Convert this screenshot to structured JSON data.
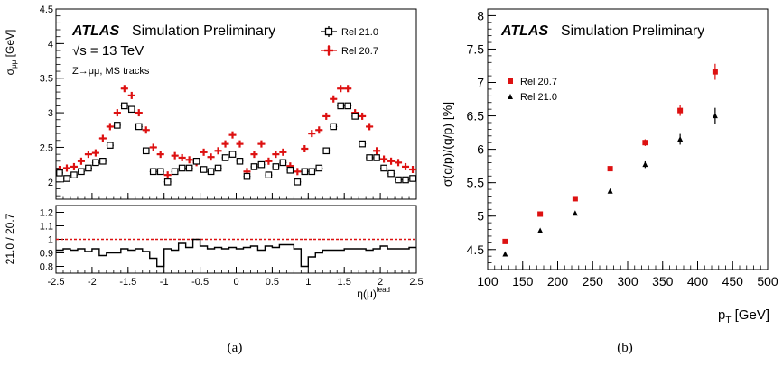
{
  "captions": {
    "left": "(a)",
    "right": "(b)"
  },
  "chart_data": [
    {
      "type": "scatter",
      "panel": "a",
      "atlas_label": "ATLAS",
      "title_rest": "Simulation Preliminary",
      "energy_label": "√s = 13 TeV",
      "process_label": "Z→μμ, MS tracks",
      "ylabel": "σ_μμ [GeV]",
      "ylim": [
        1.75,
        4.5
      ],
      "yticks": [
        2,
        2.5,
        3,
        3.5,
        4,
        4.5
      ],
      "ratio_ylabel": "21.0 / 20.7",
      "ratio_ylim": [
        0.75,
        1.25
      ],
      "ratio_yticks": [
        0.8,
        0.9,
        1,
        1.1,
        1.2
      ],
      "ratio_reference": 1.0,
      "xlabel": "η(μ)^lead",
      "xlim": [
        -2.5,
        2.5
      ],
      "xticks": [
        -2.5,
        -2,
        -1.5,
        -1,
        -0.5,
        0,
        0.5,
        1,
        1.5,
        2,
        2.5
      ],
      "x": [
        -2.45,
        -2.35,
        -2.25,
        -2.15,
        -2.05,
        -1.95,
        -1.85,
        -1.75,
        -1.65,
        -1.55,
        -1.45,
        -1.35,
        -1.25,
        -1.15,
        -1.05,
        -0.95,
        -0.85,
        -0.75,
        -0.65,
        -0.55,
        -0.45,
        -0.35,
        -0.25,
        -0.15,
        -0.05,
        0.05,
        0.15,
        0.25,
        0.35,
        0.45,
        0.55,
        0.65,
        0.75,
        0.85,
        0.95,
        1.05,
        1.15,
        1.25,
        1.35,
        1.45,
        1.55,
        1.65,
        1.75,
        1.85,
        1.95,
        2.05,
        2.15,
        2.25,
        2.35,
        2.45
      ],
      "series": [
        {
          "name": "Rel 21.0",
          "color": "#000000",
          "marker": "open-square",
          "values": [
            2.13,
            2.05,
            2.1,
            2.15,
            2.2,
            2.28,
            2.3,
            2.53,
            2.82,
            3.1,
            3.05,
            2.8,
            2.45,
            2.15,
            2.15,
            2.0,
            2.15,
            2.2,
            2.2,
            2.3,
            2.18,
            2.15,
            2.2,
            2.35,
            2.4,
            2.3,
            2.08,
            2.22,
            2.25,
            2.1,
            2.22,
            2.28,
            2.17,
            2.0,
            2.15,
            2.15,
            2.2,
            2.45,
            2.8,
            3.1,
            3.1,
            2.95,
            2.55,
            2.35,
            2.35,
            2.2,
            2.12,
            2.03,
            2.03,
            2.05
          ]
        },
        {
          "name": "Rel 20.7",
          "color": "#dd1111",
          "marker": "plus",
          "values": [
            2.18,
            2.2,
            2.22,
            2.3,
            2.4,
            2.42,
            2.63,
            2.8,
            3.0,
            3.35,
            3.25,
            3.0,
            2.75,
            2.5,
            2.4,
            2.1,
            2.38,
            2.35,
            2.32,
            2.28,
            2.43,
            2.36,
            2.45,
            2.55,
            2.68,
            2.55,
            2.15,
            2.4,
            2.55,
            2.3,
            2.4,
            2.43,
            2.23,
            2.15,
            2.48,
            2.7,
            2.75,
            2.95,
            3.2,
            3.35,
            3.35,
            3.0,
            2.95,
            2.8,
            2.45,
            2.33,
            2.3,
            2.28,
            2.22,
            2.18
          ]
        }
      ],
      "ratio": [
        0.92,
        0.93,
        0.92,
        0.93,
        0.91,
        0.93,
        0.88,
        0.9,
        0.9,
        0.93,
        0.92,
        0.93,
        0.91,
        0.86,
        0.8,
        0.93,
        0.92,
        0.97,
        0.94,
        1.0,
        0.95,
        0.93,
        0.94,
        0.93,
        0.94,
        0.93,
        0.94,
        0.95,
        0.92,
        0.95,
        0.94,
        0.96,
        0.96,
        0.93,
        0.8,
        0.87,
        0.9,
        0.92,
        0.92,
        0.92,
        0.93,
        0.93,
        0.93,
        0.92,
        0.93,
        0.95,
        0.93,
        0.93,
        0.93,
        0.94
      ]
    },
    {
      "type": "scatter",
      "panel": "b",
      "atlas_label": "ATLAS",
      "title_rest": "Simulation Preliminary",
      "xlabel": "p_T [GeV]",
      "ylabel": "σ(q/p)/(q/p) [%]",
      "xlim": [
        100,
        500
      ],
      "ylim": [
        4.2,
        8.1
      ],
      "xticks": [
        100,
        150,
        200,
        250,
        300,
        350,
        400,
        450,
        500
      ],
      "yticks": [
        4.5,
        5,
        5.5,
        6,
        6.5,
        7,
        7.5,
        8
      ],
      "x": [
        125,
        175,
        225,
        275,
        325,
        375,
        425
      ],
      "series": [
        {
          "name": "Rel 20.7",
          "color": "#dd1111",
          "marker": "square",
          "values": [
            4.62,
            5.03,
            5.26,
            5.71,
            6.1,
            6.58,
            7.16
          ],
          "errors": [
            0.02,
            0.02,
            0.03,
            0.03,
            0.05,
            0.08,
            0.12
          ]
        },
        {
          "name": "Rel 21.0",
          "color": "#000000",
          "marker": "triangle",
          "values": [
            4.43,
            4.78,
            5.04,
            5.37,
            5.77,
            6.15,
            6.5
          ],
          "errors": [
            0.02,
            0.02,
            0.02,
            0.03,
            0.05,
            0.08,
            0.12
          ]
        }
      ]
    }
  ]
}
